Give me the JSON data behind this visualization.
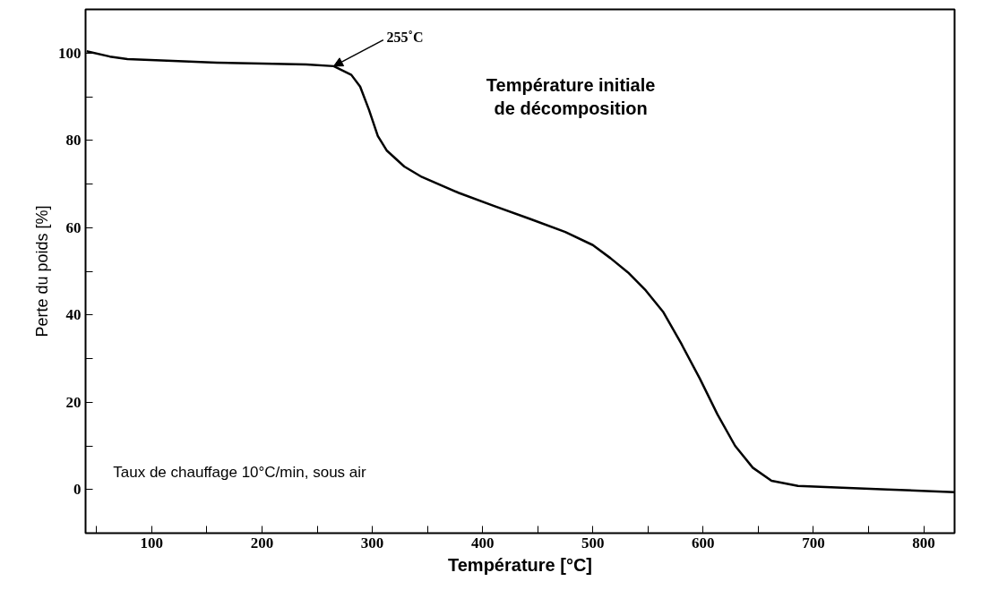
{
  "chart_data": {
    "type": "line",
    "xlabel": "Température [°C]",
    "ylabel": "Perte du poids [%]",
    "xlim": [
      40,
      828
    ],
    "ylim": [
      -10,
      110
    ],
    "xticks": [
      {
        "value": 50,
        "label": null
      },
      100,
      {
        "value": 150,
        "label": null
      },
      200,
      {
        "value": 250,
        "label": null
      },
      300,
      {
        "value": 350,
        "label": null
      },
      400,
      {
        "value": 450,
        "label": null
      },
      500,
      {
        "value": 550,
        "label": null
      },
      600,
      {
        "value": 650,
        "label": null
      },
      700,
      {
        "value": 750,
        "label": null
      },
      800
    ],
    "yticks": [
      {
        "value": -10,
        "label": null
      },
      0,
      {
        "value": 10,
        "label": null
      },
      20,
      {
        "value": 30,
        "label": null
      },
      40,
      {
        "value": 50,
        "label": null
      },
      60,
      {
        "value": 70,
        "label": null
      },
      80,
      {
        "value": 90,
        "label": null
      },
      100
    ],
    "grid": false,
    "marker": "none",
    "line_style": "solid",
    "series": [
      {
        "color": "#000000",
        "x": [
          41,
          62,
          78,
          119,
          159,
          200,
          240,
          265,
          281,
          289,
          297,
          305,
          313,
          329,
          345,
          378,
          410,
          443,
          475,
          500,
          516,
          532,
          548,
          564,
          580,
          597,
          613,
          629,
          645,
          662,
          686,
          726,
          767,
          828
        ],
        "values": [
          100.4,
          99.2,
          98.6,
          98.2,
          97.8,
          97.6,
          97.4,
          97,
          95,
          92.3,
          87,
          81,
          77.7,
          74,
          71.6,
          68,
          65,
          62,
          59,
          56,
          53,
          49.7,
          45.6,
          40.6,
          33.5,
          25.4,
          17.2,
          10,
          5,
          2,
          0.8,
          0.4,
          0,
          -0.6
        ]
      }
    ],
    "annotations": [
      {
        "text": "255˚C",
        "x": 265,
        "y": 97
      },
      "Température initiale\nde décomposition",
      "Taux de chauffage 10°C/min, sous air"
    ]
  }
}
